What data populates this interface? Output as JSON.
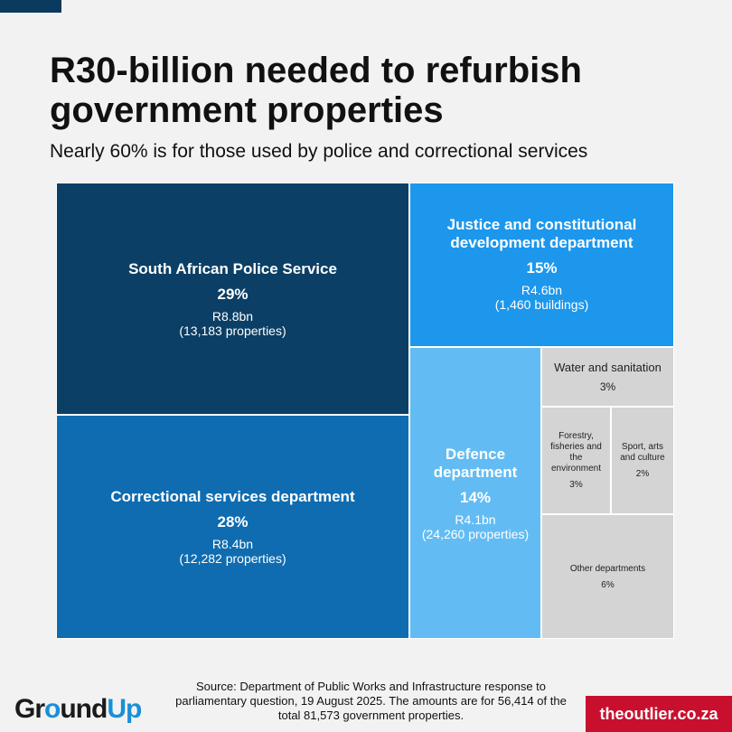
{
  "title": "R30-billion needed to refurbish government properties",
  "subtitle": "Nearly 60% is for those used by police and correctional services",
  "chart_data": {
    "type": "treemap",
    "title": "R30-billion needed to refurbish government properties",
    "subtitle": "Nearly 60% is for those used by police and correctional services",
    "unit": "percent",
    "items": [
      {
        "name": "South African Police Service",
        "value": 29,
        "pct_label": "29%",
        "amount": "R8.8bn",
        "count": "(13,183 properties)",
        "color": "#0b3f66",
        "text_color": "#ffffff"
      },
      {
        "name": "Correctional services department",
        "value": 28,
        "pct_label": "28%",
        "amount": "R8.4bn",
        "count": "(12,282 properties)",
        "color": "#0f6cb0",
        "text_color": "#ffffff"
      },
      {
        "name": "Justice and constitutional development department",
        "value": 15,
        "pct_label": "15%",
        "amount": "R4.6bn",
        "count": "(1,460 buildings)",
        "color": "#1c97ec",
        "text_color": "#ffffff"
      },
      {
        "name": "Defence department",
        "value": 14,
        "pct_label": "14%",
        "amount": "R4.1bn",
        "count": "(24,260 properties)",
        "color": "#62bcf3",
        "text_color": "#ffffff"
      },
      {
        "name": "Water and sanitation",
        "value": 3,
        "pct_label": "3%",
        "amount": "",
        "count": "",
        "color": "#d4d4d4",
        "text_color": "#222222"
      },
      {
        "name": "Forestry, fisheries and the environment",
        "value": 3,
        "pct_label": "3%",
        "amount": "",
        "count": "",
        "color": "#d4d4d4",
        "text_color": "#222222"
      },
      {
        "name": "Sport, arts and culture",
        "value": 2,
        "pct_label": "2%",
        "amount": "",
        "count": "",
        "color": "#d4d4d4",
        "text_color": "#222222"
      },
      {
        "name": "Other departments",
        "value": 6,
        "pct_label": "6%",
        "amount": "",
        "count": "",
        "color": "#d4d4d4",
        "text_color": "#222222"
      }
    ]
  },
  "source": "Source: Department of Public Works and Infrastructure response to parliamentary question, 19 August 2025. The amounts are for 56,414 of the total 81,573 government properties.",
  "logos": {
    "left_part1": "Gr",
    "left_accent": "o",
    "left_part2": "und",
    "left_part3": "Up",
    "right": "theoutlier.co.za"
  }
}
